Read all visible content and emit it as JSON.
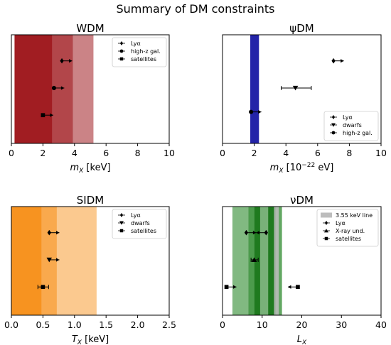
{
  "figure": {
    "suptitle": "Summary of DM constraints"
  },
  "chart_data": [
    {
      "id": "wdm",
      "type": "scatter",
      "title": "WDM",
      "xlabel_main": "m",
      "xlabel_sub": "X",
      "xlabel_rest": " [keV]",
      "xlabel_sup": "",
      "xlabel_rest2": "",
      "xlim": [
        0,
        10
      ],
      "xticks": [
        "0",
        "2",
        "4",
        "6",
        "8",
        "10"
      ],
      "bands": [
        {
          "x0": 0.2,
          "x1": 2.6,
          "color": "#a11d22",
          "opacity": 1.0
        },
        {
          "x0": 2.6,
          "x1": 3.9,
          "color": "#a11d22",
          "opacity": 0.82
        },
        {
          "x0": 3.9,
          "x1": 5.2,
          "color": "#a11d22",
          "opacity": 0.55
        }
      ],
      "points": [
        {
          "name": "Lyα",
          "x": 3.2,
          "y": 0.76,
          "marker": "diamond",
          "arrow_to": 3.85
        },
        {
          "name": "high-z gal.",
          "x": 2.7,
          "y": 0.51,
          "marker": "circle",
          "arrow_to": 3.35
        },
        {
          "name": "satellites",
          "x": 2.0,
          "y": 0.26,
          "marker": "square",
          "arrow_to": 2.65
        }
      ],
      "legend": {
        "position": "top-right",
        "entries": [
          {
            "label": "Lyα",
            "marker": "diamond"
          },
          {
            "label": "high-z gal.",
            "marker": "circle"
          },
          {
            "label": "satellites",
            "marker": "square"
          }
        ]
      }
    },
    {
      "id": "psidm",
      "type": "scatter",
      "title": "ψDM",
      "xlabel_main": "m",
      "xlabel_sub": "X",
      "xlabel_rest": " [10",
      "xlabel_sup": "−22",
      "xlabel_rest2": " eV]",
      "xlim": [
        0,
        10
      ],
      "xticks": [
        "0",
        "2",
        "4",
        "6",
        "8",
        "10"
      ],
      "bands": [
        {
          "x0": 1.75,
          "x1": 2.3,
          "color": "#2424a8",
          "opacity": 1.0
        }
      ],
      "points": [
        {
          "name": "Lyα",
          "x": 7.0,
          "y": 0.76,
          "marker": "diamond",
          "arrow_to": 7.65
        },
        {
          "name": "dwarfs",
          "x": 4.6,
          "y": 0.51,
          "marker": "triangle-down",
          "err": [
            3.7,
            5.6
          ]
        },
        {
          "name": "high-z gal.",
          "x": 1.8,
          "y": 0.29,
          "marker": "circle",
          "arrow_to": 2.45
        }
      ],
      "legend": {
        "position": "lower-right",
        "entries": [
          {
            "label": "Lyα",
            "marker": "diamond"
          },
          {
            "label": "dwarfs",
            "marker": "triangle-down"
          },
          {
            "label": "high-z gal.",
            "marker": "circle"
          }
        ]
      }
    },
    {
      "id": "sidm",
      "type": "scatter",
      "title": "SIDM",
      "xlabel_main": "T",
      "xlabel_sub": "X",
      "xlabel_rest": " [keV]",
      "xlabel_sup": "",
      "xlabel_rest2": "",
      "xlim": [
        0,
        2.5
      ],
      "xticks": [
        "0.0",
        "0.5",
        "1.0",
        "1.5",
        "2.0",
        "2.5"
      ],
      "bands": [
        {
          "x0": 0.0,
          "x1": 0.48,
          "color": "#f79320",
          "opacity": 1.0
        },
        {
          "x0": 0.48,
          "x1": 0.72,
          "color": "#f79320",
          "opacity": 0.8
        },
        {
          "x0": 0.72,
          "x1": 1.35,
          "color": "#f79320",
          "opacity": 0.5
        }
      ],
      "points": [
        {
          "name": "Lyα",
          "x": 0.6,
          "y": 0.76,
          "marker": "diamond",
          "arrow_to": 0.76
        },
        {
          "name": "dwarfs",
          "x": 0.6,
          "y": 0.51,
          "marker": "triangle-down",
          "arrow_to": 0.76
        },
        {
          "name": "satellites",
          "x": 0.5,
          "y": 0.26,
          "marker": "square",
          "err": [
            0.42,
            0.59
          ]
        }
      ],
      "legend": {
        "position": "top-right",
        "entries": [
          {
            "label": "Lyα",
            "marker": "diamond"
          },
          {
            "label": "dwarfs",
            "marker": "triangle-down"
          },
          {
            "label": "satellites",
            "marker": "square"
          }
        ]
      }
    },
    {
      "id": "nudm",
      "type": "scatter",
      "title": "νDM",
      "xlabel_main": "L",
      "xlabel_sub": "X",
      "xlabel_rest": "",
      "xlabel_sup": "",
      "xlabel_rest2": "",
      "xlim": [
        0,
        40
      ],
      "xticks": [
        "0",
        "10",
        "20",
        "30",
        "40"
      ],
      "bands": [
        {
          "x0": 2.5,
          "x1": 6.5,
          "color": "#2d8a2d",
          "opacity": 0.6
        },
        {
          "x0": 6.5,
          "x1": 8.0,
          "color": "#2d8a2d",
          "opacity": 0.85
        },
        {
          "x0": 8.0,
          "x1": 9.5,
          "color": "#1f7a1f",
          "opacity": 1.0
        },
        {
          "x0": 9.5,
          "x1": 11.5,
          "color": "#6aa86a",
          "opacity": 0.9
        },
        {
          "x0": 11.5,
          "x1": 13.5,
          "color": "#1f7a1f",
          "opacity": 1.0
        },
        {
          "x0": 13.5,
          "x1": 15.0,
          "color": "#2d8a2d",
          "opacity": 0.75
        }
      ],
      "line_band": {
        "name": "3.55 keV line",
        "x0": 13.0,
        "x1": 14.2,
        "color": "#bdbdbd"
      },
      "points": [
        {
          "name": "Lyα",
          "x": 6.0,
          "y": 0.76,
          "marker": "diamond",
          "arrow_to": 8.5
        },
        {
          "name": "Lyα",
          "x": 11.0,
          "y": 0.76,
          "marker": "diamond",
          "arrow_to": 8.5
        },
        {
          "name": "X-ray und.",
          "x": 8.0,
          "y": 0.51,
          "marker": "triangle-up",
          "err": [
            7.2,
            9.0
          ]
        },
        {
          "name": "satellites",
          "x": 1.0,
          "y": 0.26,
          "marker": "square",
          "arrow_to": 3.5
        },
        {
          "name": "satellites",
          "x": 19.0,
          "y": 0.26,
          "marker": "square",
          "arrow_to": 16.5
        }
      ],
      "legend": {
        "position": "top-right",
        "entries": [
          {
            "label": "3.55 keV line",
            "marker": "patch"
          },
          {
            "label": "Lyα",
            "marker": "diamond"
          },
          {
            "label": "X-ray und.",
            "marker": "triangle-up"
          },
          {
            "label": "satellites",
            "marker": "square"
          }
        ]
      }
    }
  ]
}
